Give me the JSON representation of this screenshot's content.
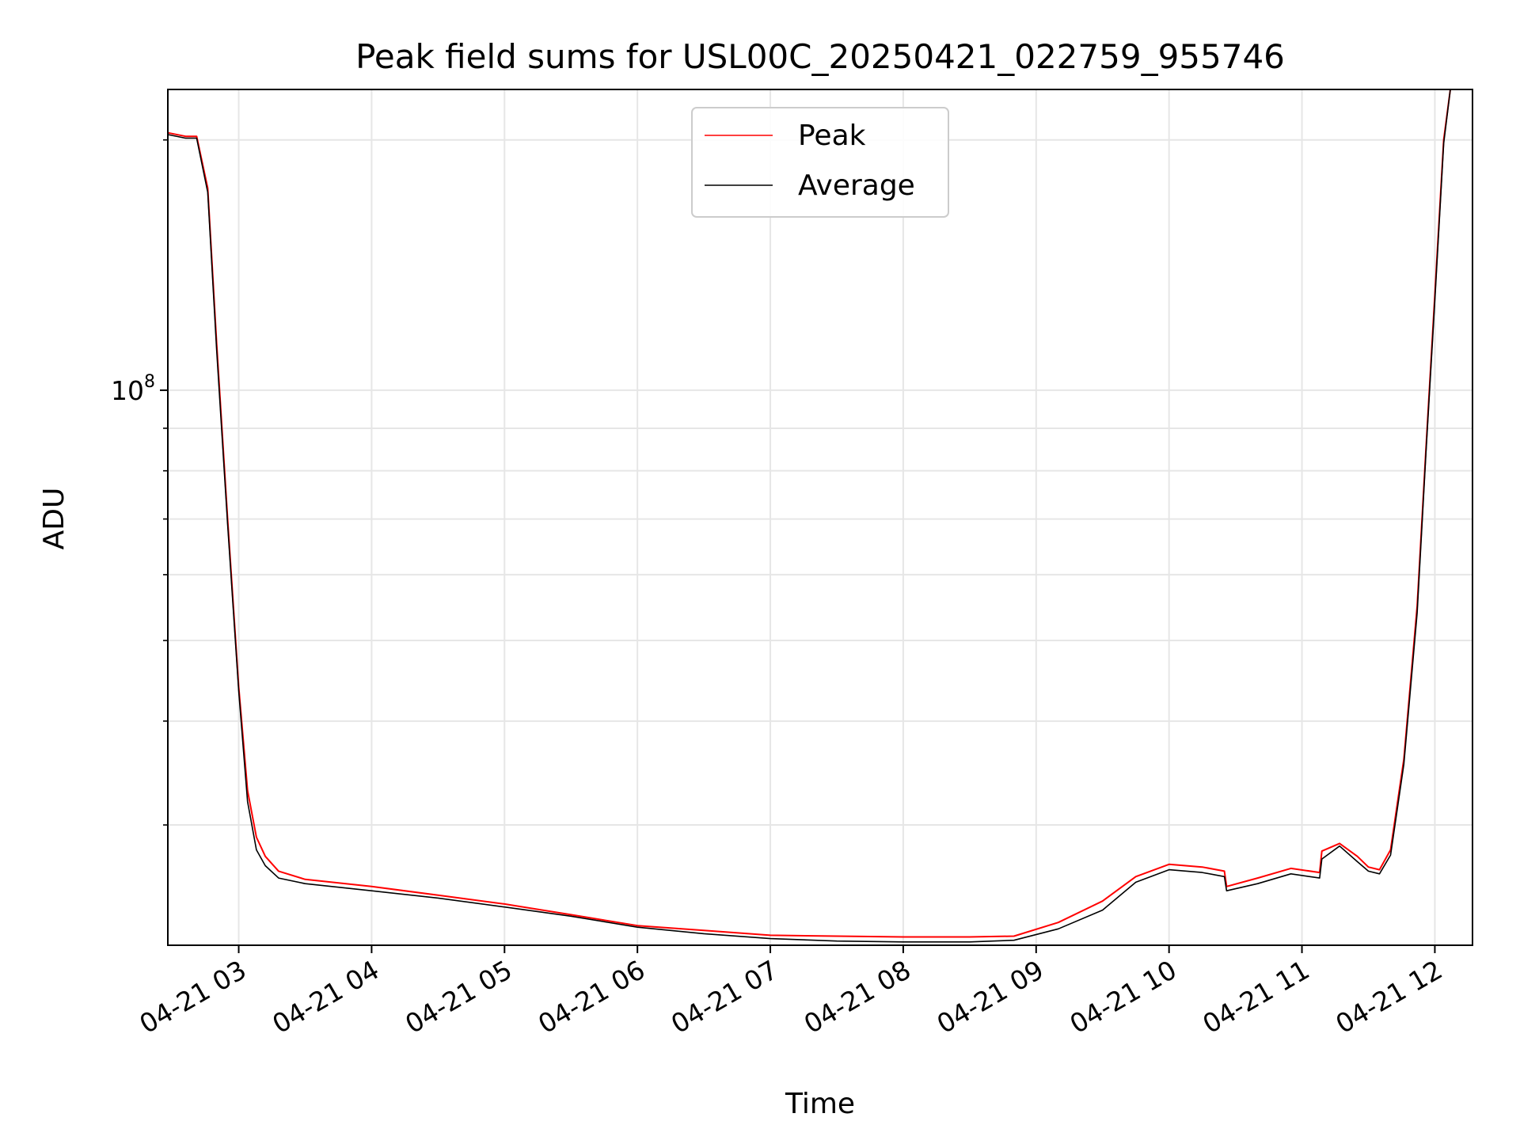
{
  "chart_data": {
    "type": "line",
    "title": "Peak field sums for USL00C_20250421_022759_955746",
    "xlabel": "Time",
    "ylabel": "ADU",
    "y_scale": "log",
    "ylim": [
      21500000,
      230000000
    ],
    "xlim": [
      "2025-04-21 02:28",
      "2025-04-21 12:17"
    ],
    "grid": true,
    "legend_position": "upper center",
    "x_tick_labels": [
      "04-21 03",
      "04-21 04",
      "04-21 05",
      "04-21 06",
      "04-21 07",
      "04-21 08",
      "04-21 09",
      "04-21 10",
      "04-21 11",
      "04-21 12"
    ],
    "x_ticks": [
      "2025-04-21 03:00",
      "2025-04-21 04:00",
      "2025-04-21 05:00",
      "2025-04-21 06:00",
      "2025-04-21 07:00",
      "2025-04-21 08:00",
      "2025-04-21 09:00",
      "2025-04-21 10:00",
      "2025-04-21 11:00",
      "2025-04-21 12:00"
    ],
    "y_major_tick": {
      "value": 100000000,
      "base": "10",
      "exponent": "8"
    },
    "y_minor_ticks": [
      30000000,
      40000000,
      50000000,
      60000000,
      70000000,
      80000000,
      90000000,
      200000000
    ],
    "series": [
      {
        "name": "Peak",
        "color": "#ff0000",
        "x": [
          "2025-04-21 02:28",
          "2025-04-21 02:36",
          "2025-04-21 02:41",
          "2025-04-21 02:46",
          "2025-04-21 02:50",
          "2025-04-21 02:55",
          "2025-04-21 03:00",
          "2025-04-21 03:04",
          "2025-04-21 03:08",
          "2025-04-21 03:12",
          "2025-04-21 03:18",
          "2025-04-21 03:30",
          "2025-04-21 04:00",
          "2025-04-21 04:30",
          "2025-04-21 05:00",
          "2025-04-21 05:30",
          "2025-04-21 06:00",
          "2025-04-21 06:30",
          "2025-04-21 07:00",
          "2025-04-21 07:30",
          "2025-04-21 08:00",
          "2025-04-21 08:30",
          "2025-04-21 08:50",
          "2025-04-21 09:10",
          "2025-04-21 09:30",
          "2025-04-21 09:45",
          "2025-04-21 10:00",
          "2025-04-21 10:15",
          "2025-04-21 10:25",
          "2025-04-21 10:26",
          "2025-04-21 10:40",
          "2025-04-21 10:55",
          "2025-04-21 11:08",
          "2025-04-21 11:09",
          "2025-04-21 11:17",
          "2025-04-21 11:25",
          "2025-04-21 11:30",
          "2025-04-21 11:35",
          "2025-04-21 11:40",
          "2025-04-21 11:46",
          "2025-04-21 11:52",
          "2025-04-21 11:56",
          "2025-04-21 12:00",
          "2025-04-21 12:04",
          "2025-04-21 12:07"
        ],
        "y": [
          204000000,
          202000000,
          202000000,
          175000000,
          114000000,
          70000000,
          44000000,
          33000000,
          29000000,
          27500000,
          26400000,
          25800000,
          25300000,
          24700000,
          24100000,
          23400000,
          22700000,
          22400000,
          22100000,
          22050000,
          22000000,
          22000000,
          22050000,
          22900000,
          24300000,
          26000000,
          26900000,
          26700000,
          26400000,
          25300000,
          25900000,
          26600000,
          26300000,
          27900000,
          28500000,
          27500000,
          26700000,
          26500000,
          28000000,
          36000000,
          55000000,
          85000000,
          130000000,
          200000000,
          230000000
        ]
      },
      {
        "name": "Average",
        "color": "#000000",
        "x": [
          "2025-04-21 02:28",
          "2025-04-21 02:36",
          "2025-04-21 02:41",
          "2025-04-21 02:46",
          "2025-04-21 02:50",
          "2025-04-21 02:55",
          "2025-04-21 03:00",
          "2025-04-21 03:04",
          "2025-04-21 03:08",
          "2025-04-21 03:12",
          "2025-04-21 03:18",
          "2025-04-21 03:30",
          "2025-04-21 04:00",
          "2025-04-21 04:30",
          "2025-04-21 05:00",
          "2025-04-21 05:30",
          "2025-04-21 06:00",
          "2025-04-21 06:30",
          "2025-04-21 07:00",
          "2025-04-21 07:30",
          "2025-04-21 08:00",
          "2025-04-21 08:30",
          "2025-04-21 08:50",
          "2025-04-21 09:10",
          "2025-04-21 09:30",
          "2025-04-21 09:45",
          "2025-04-21 10:00",
          "2025-04-21 10:15",
          "2025-04-21 10:25",
          "2025-04-21 10:26",
          "2025-04-21 10:40",
          "2025-04-21 10:55",
          "2025-04-21 11:08",
          "2025-04-21 11:09",
          "2025-04-21 11:17",
          "2025-04-21 11:25",
          "2025-04-21 11:30",
          "2025-04-21 11:35",
          "2025-04-21 11:40",
          "2025-04-21 11:46",
          "2025-04-21 11:52",
          "2025-04-21 11:56",
          "2025-04-21 12:00",
          "2025-04-21 12:04",
          "2025-04-21 12:07"
        ],
        "y": [
          203000000,
          201000000,
          201000000,
          173000000,
          112000000,
          69000000,
          43500000,
          32000000,
          28000000,
          26800000,
          25900000,
          25500000,
          25000000,
          24500000,
          23900000,
          23300000,
          22600000,
          22200000,
          21900000,
          21750000,
          21700000,
          21700000,
          21800000,
          22500000,
          23700000,
          25600000,
          26500000,
          26300000,
          26000000,
          25000000,
          25500000,
          26200000,
          25900000,
          27300000,
          28300000,
          27100000,
          26400000,
          26200000,
          27600000,
          35500000,
          54000000,
          84000000,
          128000000,
          198000000,
          230000000
        ]
      }
    ]
  }
}
